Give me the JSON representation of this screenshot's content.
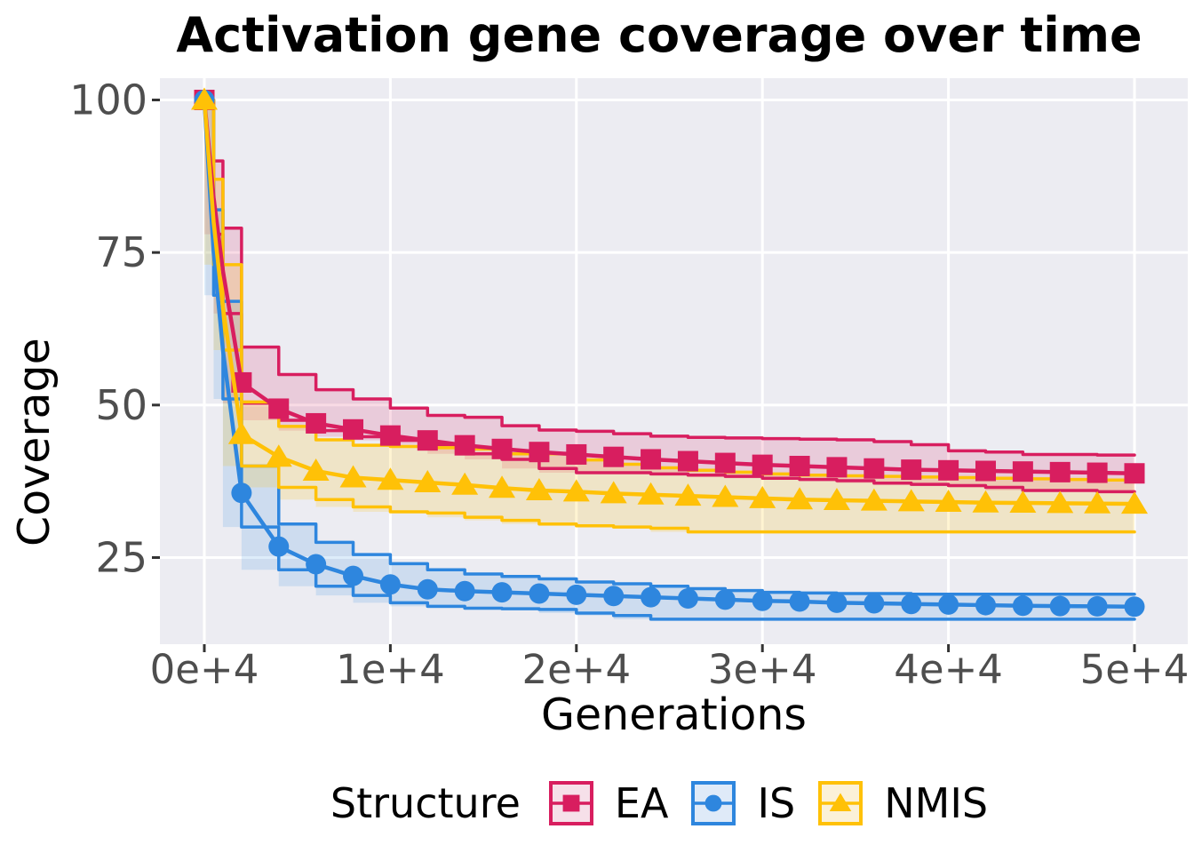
{
  "chart_data": {
    "type": "line",
    "title": "Activation gene coverage over time",
    "xlabel": "Generations",
    "ylabel": "Coverage",
    "legend_title": "Structure",
    "grid": "major-white-on-gray",
    "legend_position": "bottom",
    "panel_bg": "#ECECF2",
    "grid_color": "#FFFFFF",
    "tick_color": "#333333",
    "tick_label_color": "#4e4e4e",
    "x_ticks": [
      {
        "g": 0,
        "label": "0e+4"
      },
      {
        "g": 10000,
        "label": "1e+4"
      },
      {
        "g": 20000,
        "label": "2e+4"
      },
      {
        "g": 30000,
        "label": "3e+4"
      },
      {
        "g": 40000,
        "label": "4e+4"
      },
      {
        "g": 50000,
        "label": "5e+4"
      }
    ],
    "y_ticks": [
      {
        "v": 25,
        "label": "25"
      },
      {
        "v": 50,
        "label": "50"
      },
      {
        "v": 75,
        "label": "75"
      },
      {
        "v": 100,
        "label": "100"
      }
    ],
    "xlim": [
      -2400,
      52900
    ],
    "ylim": [
      10.8,
      103.6
    ],
    "marker_every": 2000,
    "x": [
      0,
      500,
      1000,
      2000,
      4000,
      6000,
      8000,
      10000,
      12000,
      14000,
      16000,
      18000,
      20000,
      22000,
      24000,
      26000,
      28000,
      30000,
      32000,
      34000,
      36000,
      38000,
      40000,
      42000,
      44000,
      46000,
      48000,
      50000
    ],
    "series": [
      {
        "name": "EA",
        "marker": "square",
        "color": "#D81E5F",
        "ribbon_fill": "rgba(216,30,95,0.16)",
        "key_fill": "#F6E0E9",
        "mean": [
          100,
          84,
          72,
          53.7,
          49.4,
          47.0,
          46.0,
          45.0,
          44.2,
          43.4,
          42.8,
          42.3,
          41.9,
          41.5,
          41.1,
          40.8,
          40.5,
          40.2,
          40.0,
          39.8,
          39.6,
          39.4,
          39.3,
          39.2,
          39.1,
          39.0,
          38.9,
          38.8
        ],
        "upper": [
          100,
          90,
          79,
          59.5,
          55.0,
          52.5,
          51.0,
          49.5,
          48.3,
          48.0,
          46.6,
          45.9,
          45.7,
          45.3,
          44.9,
          44.7,
          44.6,
          44.5,
          44.4,
          44.3,
          44.0,
          43.5,
          42.5,
          42.3,
          41.9,
          41.9,
          41.8,
          41.8
        ],
        "lower": [
          100,
          78,
          65,
          50.3,
          47.5,
          45.8,
          44.8,
          44.2,
          43.5,
          42.0,
          41.1,
          39.6,
          38.9,
          38.9,
          38.7,
          38.5,
          38.3,
          38.0,
          37.8,
          37.6,
          37.2,
          37.0,
          36.8,
          36.5,
          36.0,
          36.0,
          35.8,
          35.8
        ]
      },
      {
        "name": "IS",
        "marker": "circle",
        "color": "#2E86DE",
        "ribbon_fill": "rgba(46,134,222,0.16)",
        "key_fill": "#DFEAF8",
        "mean": [
          100,
          75,
          59,
          35.6,
          26.8,
          23.9,
          22.0,
          20.6,
          19.8,
          19.5,
          19.3,
          19.1,
          18.9,
          18.7,
          18.5,
          18.3,
          18.1,
          17.9,
          17.8,
          17.6,
          17.5,
          17.4,
          17.3,
          17.2,
          17.1,
          17.05,
          17.0,
          16.95
        ],
        "upper": [
          100,
          82,
          67,
          40.0,
          30.5,
          27.5,
          25.5,
          24.0,
          23.0,
          22.3,
          21.9,
          21.5,
          21.0,
          20.7,
          20.3,
          19.9,
          19.6,
          19.3,
          19.2,
          19.1,
          19.1,
          19.0,
          19.0,
          19.0,
          19.0,
          19.0,
          19.0,
          19.0
        ],
        "lower": [
          100,
          68,
          51,
          30.0,
          23.0,
          20.3,
          18.8,
          17.6,
          17.0,
          16.7,
          16.6,
          16.5,
          15.9,
          15.5,
          14.9,
          14.9,
          14.9,
          14.9,
          14.9,
          14.9,
          14.9,
          14.9,
          14.9,
          14.9,
          14.9,
          14.9,
          14.9,
          14.9
        ]
      },
      {
        "name": "NMIS",
        "marker": "triangle",
        "color": "#FFC107",
        "ribbon_fill": "rgba(255,193,7,0.18)",
        "key_fill": "#FBF1D8",
        "mean": [
          100,
          80,
          66,
          45.2,
          41.5,
          39.2,
          38.1,
          37.7,
          37.3,
          36.9,
          36.4,
          36.0,
          35.8,
          35.5,
          35.3,
          35.1,
          34.9,
          34.7,
          34.5,
          34.4,
          34.3,
          34.2,
          34.1,
          34.0,
          33.95,
          33.9,
          33.85,
          33.8
        ],
        "upper": [
          100,
          87,
          73,
          50.5,
          46.5,
          44.3,
          43.4,
          43.2,
          43.0,
          42.8,
          42.0,
          42.0,
          41.0,
          40.3,
          39.7,
          39.3,
          39.0,
          38.7,
          38.5,
          38.4,
          38.3,
          38.2,
          38.1,
          38.0,
          37.9,
          37.8,
          37.7,
          37.6
        ],
        "lower": [
          100,
          73,
          59,
          40.0,
          36.5,
          34.5,
          33.3,
          32.5,
          32.3,
          31.6,
          31.1,
          30.5,
          30.2,
          30.0,
          29.8,
          29.2,
          29.2,
          29.2,
          29.2,
          29.2,
          29.2,
          29.2,
          29.2,
          29.2,
          29.2,
          29.2,
          29.2,
          29.2
        ]
      }
    ]
  }
}
